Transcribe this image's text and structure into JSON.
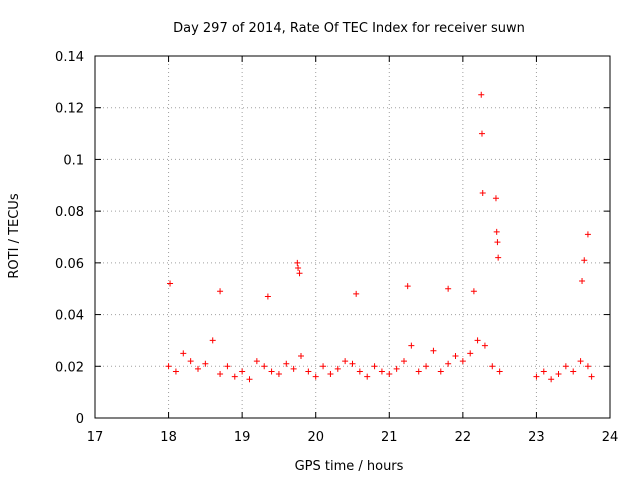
{
  "chart_data": {
    "type": "scatter",
    "title": "Day 297 of 2014, Rate Of TEC Index for receiver suwn",
    "xlabel": "GPS time / hours",
    "ylabel": "ROTI / TECUs",
    "xlim": [
      17,
      24
    ],
    "ylim": [
      0,
      0.14
    ],
    "x_ticks": [
      "17",
      "18",
      "19",
      "20",
      "21",
      "22",
      "23",
      "24"
    ],
    "y_ticks": [
      "0",
      "0.02",
      "0.04",
      "0.06",
      "0.08",
      "0.1",
      "0.12",
      "0.14"
    ],
    "grid": true,
    "marker": "plus",
    "marker_color": "#ff0000",
    "series": [
      {
        "name": "ROTI",
        "x": [
          18.0,
          18.1,
          18.2,
          18.3,
          18.4,
          18.5,
          18.6,
          18.7,
          18.8,
          18.9,
          19.0,
          19.1,
          19.2,
          19.3,
          19.4,
          19.5,
          19.6,
          19.7,
          19.8,
          19.9,
          20.0,
          20.1,
          20.2,
          20.3,
          20.4,
          20.5,
          20.6,
          20.7,
          20.8,
          20.9,
          21.0,
          21.1,
          21.2,
          21.3,
          21.4,
          21.5,
          21.6,
          21.7,
          21.8,
          21.9,
          22.0,
          22.1,
          22.2,
          22.3,
          22.4,
          22.5,
          23.0,
          23.1,
          23.2,
          23.3,
          23.4,
          23.5,
          23.6,
          23.7,
          23.75,
          22.25,
          22.26,
          22.27,
          22.45,
          22.46,
          22.47,
          22.48,
          19.75,
          19.76,
          19.78,
          23.65,
          23.7,
          23.62,
          18.02,
          18.7,
          19.35,
          20.55,
          21.25,
          21.8,
          22.15
        ],
        "y": [
          0.02,
          0.018,
          0.025,
          0.022,
          0.019,
          0.021,
          0.03,
          0.017,
          0.02,
          0.016,
          0.018,
          0.015,
          0.022,
          0.02,
          0.018,
          0.017,
          0.021,
          0.019,
          0.024,
          0.018,
          0.016,
          0.02,
          0.017,
          0.019,
          0.022,
          0.021,
          0.018,
          0.016,
          0.02,
          0.018,
          0.017,
          0.019,
          0.022,
          0.028,
          0.018,
          0.02,
          0.026,
          0.018,
          0.021,
          0.024,
          0.022,
          0.025,
          0.03,
          0.028,
          0.02,
          0.018,
          0.016,
          0.018,
          0.015,
          0.017,
          0.02,
          0.018,
          0.022,
          0.02,
          0.016,
          0.125,
          0.11,
          0.087,
          0.085,
          0.072,
          0.068,
          0.062,
          0.06,
          0.058,
          0.056,
          0.061,
          0.071,
          0.053,
          0.052,
          0.049,
          0.047,
          0.048,
          0.051,
          0.05,
          0.049
        ]
      }
    ]
  }
}
